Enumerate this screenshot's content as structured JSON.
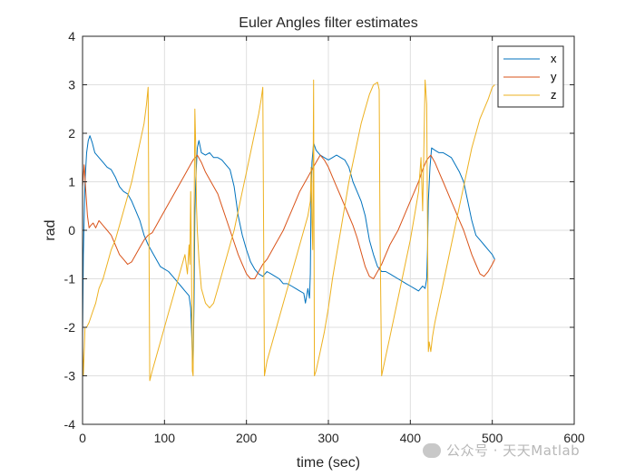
{
  "chart_data": {
    "type": "line",
    "title": "Euler Angles filter estimates",
    "xlabel": "time (sec)",
    "ylabel": "rad",
    "xlim": [
      0,
      600
    ],
    "ylim": [
      -4,
      4
    ],
    "xticks": [
      0,
      100,
      200,
      300,
      400,
      500,
      600
    ],
    "yticks": [
      -4,
      -3,
      -2,
      -1,
      0,
      1,
      2,
      3,
      4
    ],
    "grid": true,
    "legend_position": "top-right",
    "series": [
      {
        "name": "x",
        "color": "#0072BD",
        "x": [
          0,
          1,
          3,
          5,
          7,
          9,
          12,
          15,
          20,
          25,
          30,
          35,
          40,
          45,
          50,
          55,
          60,
          65,
          70,
          75,
          80,
          85,
          90,
          95,
          100,
          105,
          110,
          115,
          120,
          125,
          130,
          132,
          134,
          135,
          136,
          137,
          138,
          140,
          142,
          145,
          150,
          155,
          160,
          165,
          170,
          175,
          180,
          185,
          190,
          195,
          200,
          205,
          210,
          215,
          220,
          225,
          230,
          235,
          240,
          245,
          250,
          255,
          260,
          265,
          270,
          272,
          275,
          277,
          278,
          279,
          280,
          282,
          285,
          290,
          295,
          300,
          305,
          310,
          315,
          320,
          325,
          330,
          335,
          340,
          345,
          350,
          355,
          360,
          365,
          370,
          375,
          380,
          385,
          390,
          395,
          400,
          405,
          410,
          415,
          418,
          420,
          421,
          422,
          424,
          426,
          430,
          435,
          440,
          445,
          450,
          455,
          460,
          465,
          470,
          475,
          480,
          485,
          490,
          495,
          500,
          503
        ],
        "y": [
          -2.2,
          -0.5,
          1.0,
          1.6,
          1.85,
          1.95,
          1.8,
          1.6,
          1.5,
          1.4,
          1.3,
          1.25,
          1.1,
          0.9,
          0.8,
          0.75,
          0.6,
          0.4,
          0.2,
          -0.1,
          -0.3,
          -0.45,
          -0.6,
          -0.75,
          -0.8,
          -0.85,
          -0.95,
          -1.05,
          -1.15,
          -1.25,
          -1.35,
          -1.6,
          -2.5,
          -2.75,
          -1.5,
          0.3,
          1.0,
          1.7,
          1.85,
          1.6,
          1.55,
          1.6,
          1.5,
          1.5,
          1.45,
          1.35,
          1.25,
          0.9,
          0.3,
          -0.1,
          -0.4,
          -0.65,
          -0.8,
          -0.9,
          -0.95,
          -0.85,
          -0.9,
          -0.95,
          -1.0,
          -1.1,
          -1.1,
          -1.15,
          -1.2,
          -1.25,
          -1.3,
          -1.5,
          -1.2,
          -1.4,
          -0.9,
          0.8,
          1.4,
          1.8,
          1.65,
          1.55,
          1.5,
          1.45,
          1.5,
          1.55,
          1.5,
          1.45,
          1.3,
          1.0,
          0.8,
          0.6,
          0.3,
          -0.2,
          -0.5,
          -0.75,
          -0.85,
          -0.85,
          -0.9,
          -0.95,
          -1.0,
          -1.05,
          -1.1,
          -1.15,
          -1.2,
          -1.25,
          -1.15,
          -1.2,
          -1.0,
          -0.4,
          0.6,
          1.3,
          1.7,
          1.65,
          1.6,
          1.6,
          1.55,
          1.5,
          1.35,
          1.2,
          1.0,
          0.6,
          0.2,
          -0.1,
          -0.2,
          -0.3,
          -0.4,
          -0.5,
          -0.6
        ]
      },
      {
        "name": "y",
        "color": "#D95319",
        "x": [
          0,
          2,
          4,
          6,
          8,
          10,
          13,
          16,
          20,
          25,
          30,
          35,
          40,
          45,
          50,
          55,
          60,
          65,
          70,
          75,
          80,
          85,
          90,
          95,
          100,
          105,
          110,
          115,
          120,
          125,
          130,
          135,
          140,
          145,
          150,
          155,
          160,
          165,
          170,
          175,
          180,
          185,
          190,
          195,
          200,
          205,
          210,
          215,
          220,
          225,
          230,
          235,
          240,
          245,
          250,
          255,
          260,
          265,
          270,
          275,
          280,
          285,
          290,
          295,
          300,
          305,
          310,
          315,
          320,
          325,
          330,
          335,
          340,
          345,
          350,
          355,
          360,
          365,
          370,
          375,
          380,
          385,
          390,
          395,
          400,
          405,
          410,
          415,
          420,
          425,
          430,
          435,
          440,
          445,
          450,
          455,
          460,
          465,
          470,
          475,
          480,
          485,
          490,
          495,
          500,
          503
        ],
        "y": [
          0.9,
          1.35,
          0.8,
          0.3,
          0.05,
          0.1,
          0.15,
          0.05,
          0.2,
          0.1,
          0.0,
          -0.1,
          -0.3,
          -0.5,
          -0.6,
          -0.7,
          -0.65,
          -0.5,
          -0.35,
          -0.2,
          -0.1,
          -0.05,
          0.1,
          0.25,
          0.4,
          0.55,
          0.7,
          0.85,
          1.0,
          1.15,
          1.3,
          1.45,
          1.55,
          1.4,
          1.2,
          1.05,
          0.9,
          0.75,
          0.5,
          0.25,
          0.0,
          -0.25,
          -0.5,
          -0.7,
          -0.9,
          -1.0,
          -1.0,
          -0.85,
          -0.7,
          -0.6,
          -0.45,
          -0.3,
          -0.15,
          0.0,
          0.2,
          0.4,
          0.6,
          0.8,
          0.95,
          1.1,
          1.25,
          1.4,
          1.55,
          1.45,
          1.3,
          1.1,
          0.9,
          0.7,
          0.5,
          0.3,
          0.1,
          -0.15,
          -0.45,
          -0.75,
          -0.95,
          -1.0,
          -0.85,
          -0.7,
          -0.5,
          -0.3,
          -0.15,
          0.0,
          0.2,
          0.4,
          0.6,
          0.8,
          1.0,
          1.25,
          1.45,
          1.55,
          1.4,
          1.2,
          1.0,
          0.8,
          0.6,
          0.4,
          0.2,
          0.0,
          -0.25,
          -0.5,
          -0.7,
          -0.9,
          -0.95,
          -0.85,
          -0.7,
          -0.6
        ]
      },
      {
        "name": "z",
        "color": "#EDB120",
        "x": [
          0,
          1,
          2,
          3,
          5,
          8,
          12,
          16,
          20,
          25,
          30,
          35,
          40,
          45,
          50,
          55,
          60,
          65,
          70,
          75,
          78,
          80,
          81,
          82,
          85,
          90,
          95,
          100,
          105,
          110,
          115,
          120,
          125,
          128,
          130,
          131,
          132,
          133,
          134,
          135,
          136,
          137,
          138,
          139,
          140,
          142,
          145,
          150,
          155,
          160,
          165,
          170,
          175,
          180,
          185,
          190,
          195,
          200,
          205,
          210,
          215,
          218,
          220,
          221,
          222,
          225,
          230,
          235,
          240,
          245,
          250,
          255,
          260,
          265,
          270,
          275,
          278,
          279,
          280,
          281,
          282,
          283,
          285,
          290,
          295,
          300,
          305,
          310,
          315,
          320,
          325,
          330,
          335,
          340,
          345,
          350,
          355,
          360,
          362,
          363,
          365,
          370,
          375,
          380,
          385,
          390,
          395,
          400,
          405,
          410,
          413,
          415,
          416,
          418,
          420,
          421,
          422,
          423,
          425,
          427,
          430,
          435,
          440,
          445,
          450,
          455,
          460,
          465,
          470,
          475,
          480,
          485,
          490,
          495,
          500,
          503
        ],
        "y": [
          -2.4,
          -3.0,
          -2.5,
          -2.0,
          -2.0,
          -1.9,
          -1.7,
          -1.5,
          -1.2,
          -1.0,
          -0.7,
          -0.4,
          -0.2,
          0.1,
          0.4,
          0.7,
          1.0,
          1.4,
          1.8,
          2.2,
          2.6,
          2.95,
          0.0,
          -3.1,
          -2.9,
          -2.6,
          -2.3,
          -2.0,
          -1.7,
          -1.4,
          -1.1,
          -0.8,
          -0.5,
          -0.9,
          -0.3,
          -0.7,
          0.8,
          -0.8,
          -2.9,
          -3.0,
          0.0,
          2.5,
          1.8,
          0.5,
          0.0,
          -0.6,
          -1.2,
          -1.5,
          -1.6,
          -1.5,
          -1.2,
          -0.9,
          -0.6,
          -0.3,
          0.0,
          0.4,
          0.8,
          1.2,
          1.6,
          2.0,
          2.4,
          2.7,
          2.95,
          0.0,
          -3.0,
          -2.7,
          -2.4,
          -2.1,
          -1.8,
          -1.5,
          -1.2,
          -0.9,
          -0.6,
          -0.3,
          0.0,
          0.3,
          0.6,
          1.3,
          0.2,
          -0.4,
          3.1,
          -3.0,
          -2.9,
          -2.5,
          -2.1,
          -1.6,
          -1.0,
          -0.5,
          0.0,
          0.5,
          1.0,
          1.4,
          1.8,
          2.2,
          2.5,
          2.8,
          3.0,
          3.05,
          2.9,
          0.0,
          -3.0,
          -2.6,
          -2.2,
          -1.8,
          -1.4,
          -1.0,
          -0.6,
          -0.2,
          0.3,
          0.8,
          1.5,
          0.4,
          1.2,
          3.1,
          2.6,
          0.0,
          -2.5,
          -2.3,
          -2.5,
          -2.2,
          -1.9,
          -1.5,
          -1.1,
          -0.7,
          -0.3,
          0.1,
          0.5,
          0.9,
          1.3,
          1.7,
          2.0,
          2.3,
          2.5,
          2.7,
          2.95,
          3.0
        ]
      }
    ]
  },
  "watermark": {
    "text": "公众号 · 天天Matlab"
  }
}
